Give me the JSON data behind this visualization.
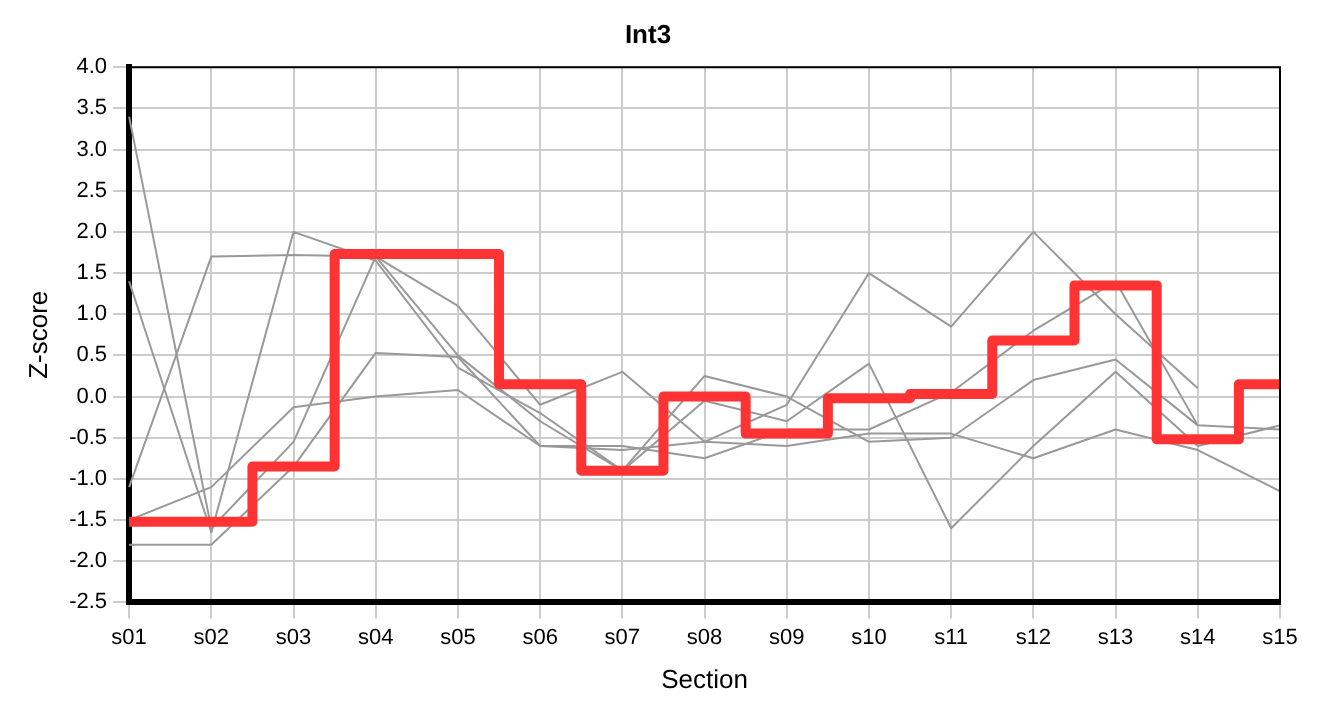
{
  "chart_data": {
    "type": "line",
    "title": "Int3",
    "xlabel": "Section",
    "ylabel": "Z-score",
    "categories": [
      "s01",
      "s02",
      "s03",
      "s04",
      "s05",
      "s06",
      "s07",
      "s08",
      "s09",
      "s10",
      "s11",
      "s12",
      "s13",
      "s14",
      "s15"
    ],
    "series": [
      {
        "color": "#999999",
        "values": [
          3.4,
          -1.6,
          -0.55,
          1.7,
          1.1,
          -0.1,
          0.3,
          -0.55,
          -0.1,
          1.5,
          0.85,
          2.0,
          1.0,
          0.1,
          null
        ]
      },
      {
        "color": "#999999",
        "values": [
          1.4,
          -1.65,
          2.0,
          1.65,
          0.35,
          -0.2,
          -0.9,
          -0.05,
          -0.3,
          0.4,
          -1.6,
          -0.6,
          0.3,
          -0.6,
          -0.35
        ]
      },
      {
        "color": "#999999",
        "values": [
          -1.1,
          1.7,
          1.72,
          1.7,
          0.5,
          -0.3,
          -0.9,
          0.25,
          0.0,
          -0.55,
          -0.5,
          0.2,
          0.45,
          -0.35,
          -0.4
        ]
      },
      {
        "color": "#999999",
        "values": [
          -1.8,
          -1.8,
          -0.85,
          0.53,
          0.48,
          -0.6,
          -0.65,
          -0.55,
          -0.6,
          -0.45,
          -0.45,
          -0.75,
          -0.4,
          -0.65,
          -1.15
        ]
      },
      {
        "color": "#999999",
        "values": [
          -1.5,
          -1.1,
          -0.13,
          0.0,
          0.08,
          -0.6,
          -0.6,
          -0.75,
          -0.4,
          -0.4,
          0.05,
          0.8,
          1.4,
          -0.35,
          null
        ]
      },
      {
        "type": "step",
        "color": "#ff3333",
        "values": [
          -1.52,
          -1.52,
          -0.85,
          1.73,
          1.73,
          0.15,
          -0.9,
          0.0,
          -0.45,
          -0.02,
          0.03,
          0.68,
          1.35,
          -0.52,
          0.15
        ]
      }
    ],
    "ylim": [
      -2.5,
      4.0
    ],
    "yticks": [
      {
        "value": -2.5,
        "label": "-2.5"
      },
      {
        "value": -2,
        "label": "-2.0"
      },
      {
        "value": -1.5,
        "label": "-1.5"
      },
      {
        "value": -1,
        "label": "-1.0"
      },
      {
        "value": -0.5,
        "label": "-0.5"
      },
      {
        "value": 0,
        "label": "0.0"
      },
      {
        "value": 0.5,
        "label": "0.5"
      },
      {
        "value": 1,
        "label": "1.0"
      },
      {
        "value": 1.5,
        "label": "1.5"
      },
      {
        "value": 2,
        "label": "2.0"
      },
      {
        "value": 2.5,
        "label": "2.5"
      },
      {
        "value": 3,
        "label": "3.0"
      },
      {
        "value": 3.5,
        "label": "3.5"
      },
      {
        "value": 4,
        "label": "4.0"
      }
    ],
    "grid": true,
    "legend": false
  }
}
